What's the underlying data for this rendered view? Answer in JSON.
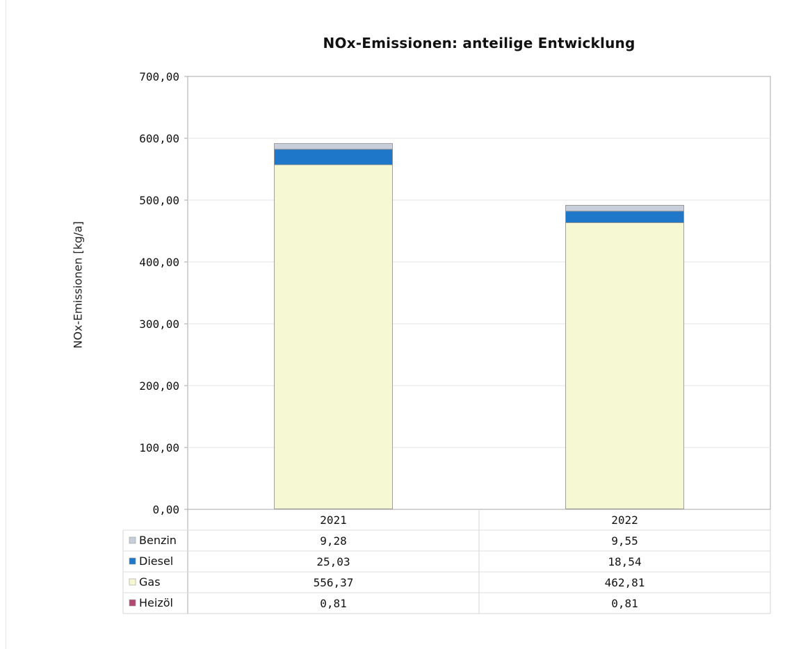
{
  "chart_data": {
    "type": "bar",
    "stacked": true,
    "title": "NOx-Emissionen: anteilige Entwicklung",
    "ylabel": "NOx-Emissionen [kg/a]",
    "ylim": [
      0,
      700
    ],
    "yticks": [
      "0,00",
      "100,00",
      "200,00",
      "300,00",
      "400,00",
      "500,00",
      "600,00",
      "700,00"
    ],
    "categories": [
      "2021",
      "2022"
    ],
    "grid": true,
    "legend": "data-table-left",
    "series": [
      {
        "name": "Benzin",
        "values": [
          9.28,
          9.55
        ],
        "labels": [
          "9,28",
          "9,55"
        ],
        "color": "#c9cedb"
      },
      {
        "name": "Diesel",
        "values": [
          25.03,
          18.54
        ],
        "labels": [
          "25,03",
          "18,54"
        ],
        "color": "#1f77c9"
      },
      {
        "name": "Gas",
        "values": [
          556.37,
          462.81
        ],
        "labels": [
          "556,37",
          "462,81"
        ],
        "color": "#f5f8d2"
      },
      {
        "name": "Heizöl",
        "values": [
          0.81,
          0.81
        ],
        "labels": [
          "0,81",
          "0,81"
        ],
        "color": "#b04a6e"
      }
    ]
  }
}
